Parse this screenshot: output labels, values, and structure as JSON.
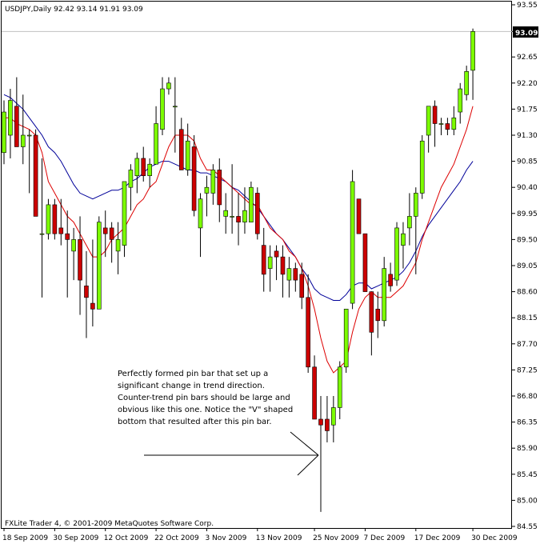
{
  "chart_data": {
    "type": "candlestick",
    "symbol_line": "USDJPY,Daily  92.42 93.14 91.91 93.09",
    "footer": "FXLite Trader 4, © 2001-2009 MetaQuotes Software Corp.",
    "last_price_label": "93.09",
    "y_ticks": [
      "93.55",
      "93.09",
      "92.65",
      "92.20",
      "91.75",
      "91.30",
      "90.85",
      "90.40",
      "89.95",
      "89.50",
      "89.05",
      "88.60",
      "88.15",
      "87.70",
      "87.25",
      "86.80",
      "86.35",
      "85.90",
      "85.45",
      "85.00",
      "84.55"
    ],
    "x_ticks": [
      "18 Sep 2009",
      "30 Sep 2009",
      "12 Oct 2009",
      "22 Oct 2009",
      "3 Nov 2009",
      "13 Nov 2009",
      "25 Nov 2009",
      "7 Dec 2009",
      "17 Dec 2009",
      "30 Dec 2009"
    ],
    "annotation": [
      "Perfectly formed pin bar that set up a",
      "significant change in trend direction.",
      "Counter-trend pin bars should be large and",
      "obvious like this one. Notice the \"V\" shaped",
      "bottom that resulted after this pin bar."
    ],
    "colors": {
      "up": "#7cfc00",
      "down": "#cc0000",
      "fast_ma": "#dd0000",
      "slow_ma": "#000099"
    },
    "candles": [
      {
        "o": 91.0,
        "h": 91.9,
        "l": 90.8,
        "c": 91.7
      },
      {
        "o": 91.3,
        "h": 92.1,
        "l": 90.9,
        "c": 91.9
      },
      {
        "o": 91.8,
        "h": 92.3,
        "l": 91.1,
        "c": 91.1
      },
      {
        "o": 91.1,
        "h": 92.0,
        "l": 90.8,
        "c": 91.3
      },
      {
        "o": 91.3,
        "h": 91.4,
        "l": 90.3,
        "c": 91.3
      },
      {
        "o": 91.3,
        "h": 91.4,
        "l": 89.9,
        "c": 89.9
      },
      {
        "o": 89.6,
        "h": 90.9,
        "l": 88.5,
        "c": 89.6
      },
      {
        "o": 89.6,
        "h": 90.2,
        "l": 89.5,
        "c": 90.1
      },
      {
        "o": 90.1,
        "h": 90.2,
        "l": 89.5,
        "c": 89.6
      },
      {
        "o": 89.7,
        "h": 90.2,
        "l": 89.4,
        "c": 89.6
      },
      {
        "o": 89.6,
        "h": 90.0,
        "l": 88.5,
        "c": 89.5
      },
      {
        "o": 89.3,
        "h": 89.7,
        "l": 88.8,
        "c": 89.5
      },
      {
        "o": 89.5,
        "h": 89.9,
        "l": 88.2,
        "c": 88.8
      },
      {
        "o": 88.7,
        "h": 89.3,
        "l": 87.8,
        "c": 88.5
      },
      {
        "o": 88.4,
        "h": 89.5,
        "l": 88.0,
        "c": 88.3
      },
      {
        "o": 88.3,
        "h": 89.9,
        "l": 88.3,
        "c": 89.8
      },
      {
        "o": 89.7,
        "h": 90.0,
        "l": 89.2,
        "c": 89.6
      },
      {
        "o": 89.7,
        "h": 89.8,
        "l": 89.1,
        "c": 89.5
      },
      {
        "o": 89.3,
        "h": 89.8,
        "l": 88.9,
        "c": 89.5
      },
      {
        "o": 89.4,
        "h": 90.5,
        "l": 89.2,
        "c": 90.5
      },
      {
        "o": 90.4,
        "h": 90.8,
        "l": 90.0,
        "c": 90.7
      },
      {
        "o": 90.6,
        "h": 91.0,
        "l": 90.3,
        "c": 90.9
      },
      {
        "o": 90.9,
        "h": 91.1,
        "l": 90.5,
        "c": 90.6
      },
      {
        "o": 90.6,
        "h": 90.9,
        "l": 90.4,
        "c": 90.8
      },
      {
        "o": 90.8,
        "h": 91.8,
        "l": 90.8,
        "c": 91.5
      },
      {
        "o": 91.4,
        "h": 92.3,
        "l": 91.3,
        "c": 92.1
      },
      {
        "o": 92.1,
        "h": 92.3,
        "l": 92.0,
        "c": 92.2
      },
      {
        "o": 91.8,
        "h": 92.3,
        "l": 91.0,
        "c": 91.8
      },
      {
        "o": 91.4,
        "h": 91.6,
        "l": 90.7,
        "c": 90.7
      },
      {
        "o": 90.7,
        "h": 91.5,
        "l": 90.6,
        "c": 91.2
      },
      {
        "o": 91.1,
        "h": 91.3,
        "l": 89.9,
        "c": 90.0
      },
      {
        "o": 89.7,
        "h": 90.3,
        "l": 89.2,
        "c": 90.2
      },
      {
        "o": 90.3,
        "h": 90.6,
        "l": 89.9,
        "c": 90.4
      },
      {
        "o": 90.3,
        "h": 90.8,
        "l": 90.1,
        "c": 90.7
      },
      {
        "o": 90.7,
        "h": 90.9,
        "l": 89.8,
        "c": 90.1
      },
      {
        "o": 89.9,
        "h": 90.3,
        "l": 89.6,
        "c": 90.0
      },
      {
        "o": 89.9,
        "h": 90.8,
        "l": 89.6,
        "c": 89.9
      },
      {
        "o": 89.9,
        "h": 90.3,
        "l": 89.4,
        "c": 89.8
      },
      {
        "o": 89.8,
        "h": 90.4,
        "l": 89.6,
        "c": 90.0
      },
      {
        "o": 89.8,
        "h": 90.5,
        "l": 89.8,
        "c": 90.4
      },
      {
        "o": 90.3,
        "h": 90.4,
        "l": 89.5,
        "c": 89.6
      },
      {
        "o": 89.4,
        "h": 89.7,
        "l": 88.6,
        "c": 88.9
      },
      {
        "o": 89.0,
        "h": 89.4,
        "l": 88.6,
        "c": 89.2
      },
      {
        "o": 89.3,
        "h": 89.4,
        "l": 88.8,
        "c": 89.2
      },
      {
        "o": 89.2,
        "h": 89.4,
        "l": 88.5,
        "c": 88.9
      },
      {
        "o": 88.8,
        "h": 89.2,
        "l": 88.5,
        "c": 89.0
      },
      {
        "o": 89.0,
        "h": 89.1,
        "l": 88.6,
        "c": 88.8
      },
      {
        "o": 88.9,
        "h": 89.1,
        "l": 88.3,
        "c": 88.5
      },
      {
        "o": 88.5,
        "h": 88.9,
        "l": 87.2,
        "c": 87.3
      },
      {
        "o": 87.3,
        "h": 87.5,
        "l": 86.4,
        "c": 86.4
      },
      {
        "o": 86.4,
        "h": 86.8,
        "l": 84.8,
        "c": 86.3
      },
      {
        "o": 86.4,
        "h": 86.8,
        "l": 86.0,
        "c": 86.2
      },
      {
        "o": 86.3,
        "h": 86.8,
        "l": 86.0,
        "c": 86.6
      },
      {
        "o": 86.6,
        "h": 87.4,
        "l": 86.4,
        "c": 87.3
      },
      {
        "o": 87.3,
        "h": 88.3,
        "l": 87.2,
        "c": 88.3
      },
      {
        "o": 88.4,
        "h": 90.7,
        "l": 88.3,
        "c": 90.5
      },
      {
        "o": 90.2,
        "h": 90.2,
        "l": 89.6,
        "c": 89.6
      },
      {
        "o": 89.6,
        "h": 89.6,
        "l": 88.6,
        "c": 88.6
      },
      {
        "o": 88.6,
        "h": 88.6,
        "l": 87.5,
        "c": 87.9
      },
      {
        "o": 88.3,
        "h": 88.6,
        "l": 87.8,
        "c": 88.1
      },
      {
        "o": 88.1,
        "h": 89.2,
        "l": 88.0,
        "c": 89.0
      },
      {
        "o": 88.9,
        "h": 89.1,
        "l": 88.6,
        "c": 88.7
      },
      {
        "o": 88.8,
        "h": 89.8,
        "l": 88.7,
        "c": 89.7
      },
      {
        "o": 89.4,
        "h": 89.8,
        "l": 89.0,
        "c": 89.6
      },
      {
        "o": 89.7,
        "h": 90.3,
        "l": 89.4,
        "c": 89.9
      },
      {
        "o": 89.9,
        "h": 90.4,
        "l": 88.9,
        "c": 90.3
      },
      {
        "o": 90.3,
        "h": 91.3,
        "l": 90.2,
        "c": 91.2
      },
      {
        "o": 91.3,
        "h": 91.8,
        "l": 91.0,
        "c": 91.8
      },
      {
        "o": 91.8,
        "h": 91.9,
        "l": 91.1,
        "c": 91.5
      },
      {
        "o": 91.5,
        "h": 91.6,
        "l": 91.3,
        "c": 91.5
      },
      {
        "o": 91.5,
        "h": 91.6,
        "l": 91.3,
        "c": 91.4
      },
      {
        "o": 91.4,
        "h": 91.8,
        "l": 91.3,
        "c": 91.6
      },
      {
        "o": 91.7,
        "h": 92.2,
        "l": 91.5,
        "c": 92.1
      },
      {
        "o": 92.0,
        "h": 92.5,
        "l": 91.9,
        "c": 92.4
      },
      {
        "o": 92.42,
        "h": 93.14,
        "l": 91.91,
        "c": 93.09
      }
    ],
    "fast_ma": [
      91.6,
      91.6,
      91.5,
      91.45,
      91.4,
      91.3,
      91.0,
      90.5,
      90.3,
      90.1,
      89.9,
      89.8,
      89.6,
      89.4,
      89.2,
      89.2,
      89.3,
      89.5,
      89.6,
      89.7,
      89.9,
      90.1,
      90.2,
      90.4,
      90.5,
      90.8,
      91.1,
      91.3,
      91.3,
      91.3,
      91.2,
      90.9,
      90.7,
      90.7,
      90.6,
      90.5,
      90.4,
      90.3,
      90.2,
      90.1,
      90.1,
      89.9,
      89.7,
      89.6,
      89.5,
      89.3,
      89.2,
      89.0,
      88.7,
      88.3,
      87.8,
      87.4,
      87.2,
      87.3,
      87.4,
      87.9,
      88.3,
      88.5,
      88.6,
      88.5,
      88.5,
      88.5,
      88.6,
      88.7,
      88.9,
      89.1,
      89.5,
      89.8,
      90.1,
      90.4,
      90.6,
      90.8,
      91.1,
      91.4,
      91.8
    ],
    "slow_ma": [
      92.0,
      91.95,
      91.85,
      91.75,
      91.6,
      91.45,
      91.3,
      91.1,
      91.0,
      90.85,
      90.65,
      90.45,
      90.3,
      90.25,
      90.2,
      90.25,
      90.3,
      90.35,
      90.35,
      90.4,
      90.5,
      90.55,
      90.65,
      90.75,
      90.8,
      90.85,
      90.85,
      90.8,
      90.75,
      90.7,
      90.7,
      90.65,
      90.65,
      90.6,
      90.55,
      90.5,
      90.4,
      90.35,
      90.25,
      90.15,
      90.05,
      89.9,
      89.75,
      89.6,
      89.5,
      89.35,
      89.2,
      89.0,
      88.85,
      88.65,
      88.55,
      88.5,
      88.45,
      88.45,
      88.55,
      88.7,
      88.75,
      88.75,
      88.65,
      88.7,
      88.75,
      88.8,
      88.85,
      88.95,
      89.1,
      89.3,
      89.55,
      89.75,
      89.9,
      90.05,
      90.2,
      90.35,
      90.5,
      90.7,
      90.85
    ]
  }
}
